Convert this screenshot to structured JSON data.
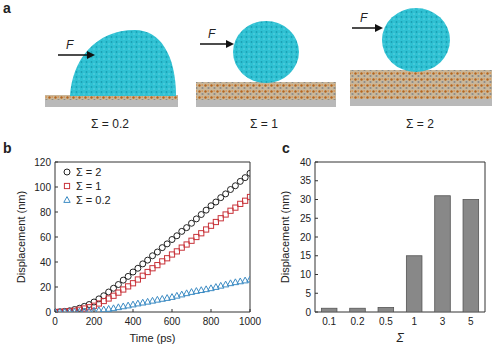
{
  "panel_labels": [
    "a",
    "b",
    "c"
  ],
  "snapshots": [
    {
      "force": "F",
      "label": "Σ = 0.2"
    },
    {
      "force": "F",
      "label": "Σ = 1"
    },
    {
      "force": "F",
      "label": "Σ = 2"
    }
  ],
  "chart_data": [
    {
      "type": "scatter",
      "x": [
        0,
        25,
        50,
        75,
        100,
        125,
        150,
        175,
        200,
        225,
        250,
        275,
        300,
        325,
        350,
        375,
        400,
        425,
        450,
        475,
        500,
        525,
        550,
        575,
        600,
        625,
        650,
        675,
        700,
        725,
        750,
        775,
        800,
        825,
        850,
        875,
        900,
        925,
        950,
        975,
        1000
      ],
      "series": [
        {
          "name": "Σ = 2",
          "color": "#222222",
          "marker": "circle",
          "values": [
            0,
            0.2,
            0.5,
            1,
            2,
            3,
            4.5,
            6,
            8,
            10.5,
            13,
            16,
            19,
            22,
            25.5,
            28.5,
            32,
            35,
            38.5,
            41.5,
            45,
            48,
            51.5,
            54.5,
            58,
            61,
            64.5,
            67.5,
            71,
            74.5,
            78,
            81.5,
            85,
            88,
            91.5,
            94.5,
            98,
            101,
            104.5,
            107.5,
            111
          ]
        },
        {
          "name": "Σ = 1",
          "color": "#c8333a",
          "marker": "square",
          "values": [
            0,
            0.1,
            0.3,
            0.6,
            1,
            1.8,
            2.8,
            3.8,
            5,
            6.8,
            8.8,
            10.8,
            13,
            15.5,
            18,
            20.5,
            23,
            26,
            29,
            32,
            35,
            37.5,
            40.5,
            43,
            46,
            48.5,
            51.5,
            54,
            57,
            60,
            63,
            66,
            69,
            72,
            75,
            78,
            81,
            83.5,
            86.5,
            89,
            92
          ]
        },
        {
          "name": "Σ = 0.2",
          "color": "#3d8cc4",
          "marker": "triangle",
          "values": [
            0,
            0,
            0.1,
            0.1,
            0.2,
            0.3,
            0.5,
            0.7,
            1,
            1.4,
            2,
            2.5,
            3,
            3.8,
            4.5,
            5.2,
            6,
            6.8,
            7.5,
            8.2,
            9,
            9.8,
            10.5,
            11.2,
            12,
            13,
            14,
            15,
            16,
            16.8,
            17.5,
            18.2,
            19,
            20,
            21,
            22,
            23,
            23.8,
            24.5,
            25.2,
            26
          ]
        }
      ],
      "xlim": [
        0,
        1000
      ],
      "xticks": [
        0,
        200,
        400,
        600,
        800,
        1000
      ],
      "ylim": [
        0,
        120
      ],
      "yticks": [
        0,
        20,
        40,
        60,
        80,
        100,
        120
      ],
      "x_label": "Time (ps)",
      "y_label": "Displacement (nm)",
      "legend": "upper left"
    },
    {
      "type": "bar",
      "categories": [
        "0.1",
        "0.2",
        "0.5",
        "1",
        "3",
        "5"
      ],
      "values": [
        1,
        1,
        1.2,
        15,
        31,
        30
      ],
      "color": "#888888",
      "ylim": [
        0,
        40
      ],
      "yticks": [
        0,
        5,
        10,
        15,
        20,
        25,
        30,
        35,
        40
      ],
      "x_label": "Σ",
      "y_label": "Displacement (nm)"
    }
  ]
}
